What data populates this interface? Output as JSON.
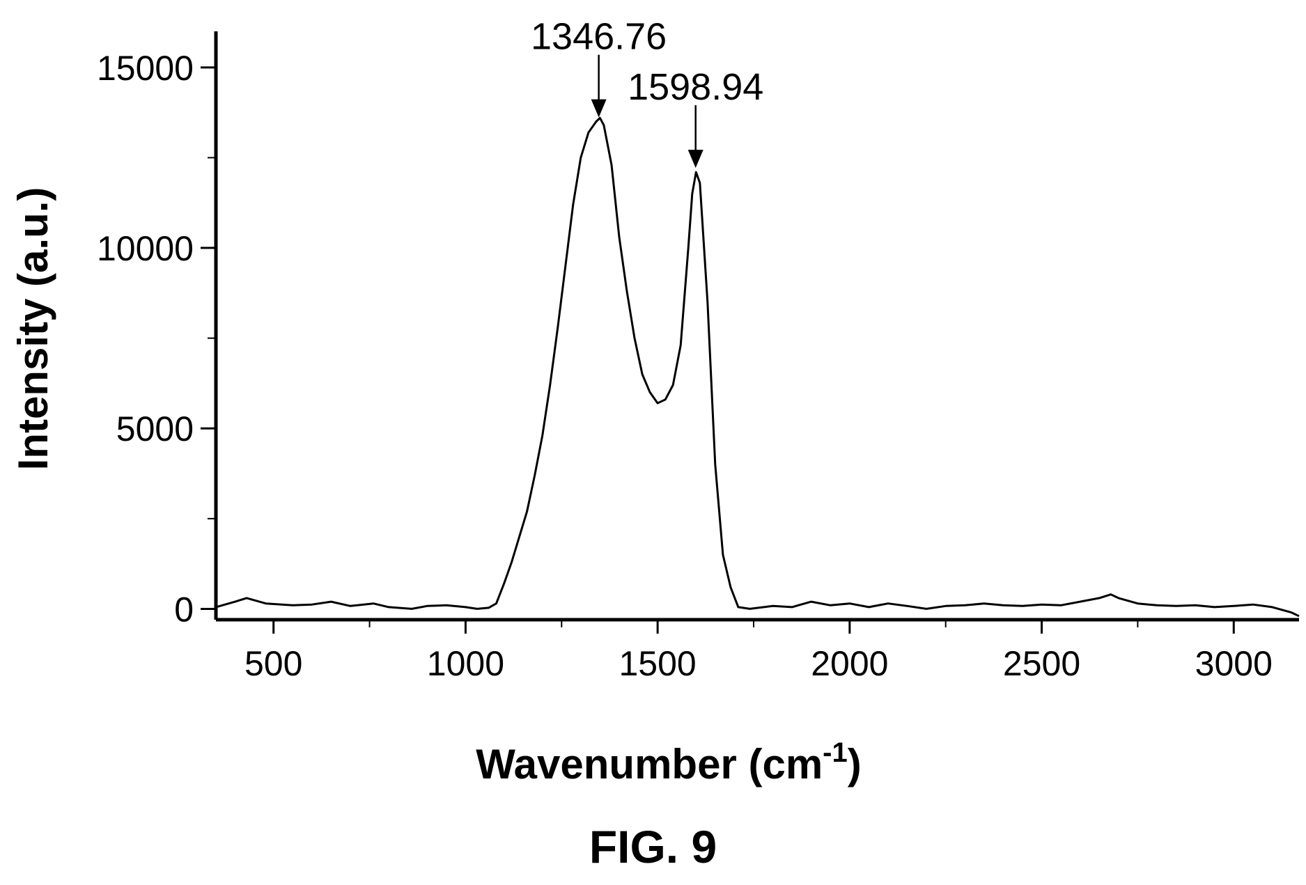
{
  "figure": {
    "caption": "FIG. 9"
  },
  "chart_data": {
    "type": "line",
    "xlabel": "Wavenumber (cm",
    "xlabel_superscript": "-1",
    "xlabel_suffix": ")",
    "ylabel": "Intensity (a.u.)",
    "xlim": [
      350,
      3170
    ],
    "ylim": [
      -300,
      16000
    ],
    "xticks": [
      500,
      1000,
      1500,
      2000,
      2500,
      3000
    ],
    "yticks": [
      0,
      5000,
      10000,
      15000
    ],
    "grid": false,
    "series": [
      {
        "x": [
          350,
          400,
          430,
          480,
          550,
          600,
          650,
          700,
          760,
          800,
          860,
          900,
          950,
          1000,
          1030,
          1060,
          1080,
          1100,
          1120,
          1140,
          1160,
          1180,
          1200,
          1220,
          1240,
          1260,
          1280,
          1300,
          1320,
          1340,
          1350,
          1360,
          1380,
          1400,
          1420,
          1440,
          1460,
          1480,
          1500,
          1520,
          1540,
          1560,
          1580,
          1590,
          1600,
          1610,
          1630,
          1650,
          1670,
          1690,
          1710,
          1740,
          1800,
          1850,
          1900,
          1950,
          2000,
          2050,
          2100,
          2150,
          2200,
          2250,
          2300,
          2350,
          2400,
          2450,
          2500,
          2550,
          2600,
          2650,
          2680,
          2700,
          2750,
          2800,
          2850,
          2900,
          2950,
          3000,
          3050,
          3100,
          3150,
          3170
        ],
        "y": [
          50,
          200,
          300,
          150,
          100,
          120,
          200,
          80,
          150,
          50,
          0,
          80,
          100,
          50,
          0,
          30,
          150,
          700,
          1300,
          2000,
          2700,
          3700,
          4800,
          6200,
          7800,
          9500,
          11200,
          12500,
          13200,
          13500,
          13600,
          13400,
          12300,
          10300,
          8800,
          7500,
          6500,
          6000,
          5700,
          5800,
          6200,
          7300,
          10000,
          11500,
          12100,
          11800,
          8500,
          4000,
          1500,
          600,
          50,
          0,
          80,
          50,
          200,
          100,
          150,
          50,
          150,
          80,
          0,
          80,
          100,
          150,
          100,
          80,
          120,
          100,
          200,
          300,
          400,
          300,
          150,
          100,
          80,
          100,
          50,
          80,
          120,
          50,
          -100,
          -200
        ]
      }
    ],
    "annotations": [
      {
        "text": "1346.76",
        "x": 1346.76,
        "y": 13500
      },
      {
        "text": "1598.94",
        "x": 1598.94,
        "y": 12100
      }
    ]
  }
}
